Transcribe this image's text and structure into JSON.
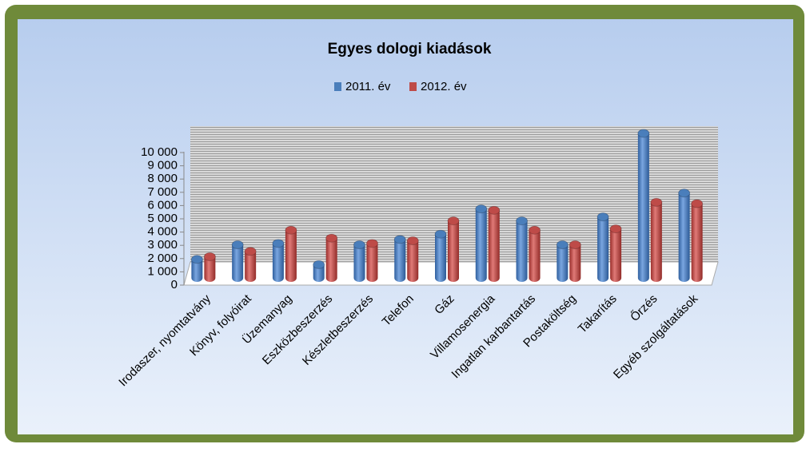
{
  "chart_data": {
    "type": "bar",
    "title": "Egyes dologi kiadások",
    "categories": [
      "Irodaszer, nyomtatvány",
      "Könyv, folyóirat",
      "Üzemanyag",
      "Eszközbeszerzés",
      "Készletbeszerzés",
      "Telefon",
      "Gáz",
      "Villamosenergia",
      "Ingatlan karbantartás",
      "Postaköltség",
      "Takarítás",
      "Őrzés",
      "Egyéb szolgáltatások"
    ],
    "series": [
      {
        "name": "2011. év",
        "color": "#4a7ebb",
        "values": [
          1400,
          2500,
          2600,
          1000,
          2500,
          2900,
          3300,
          5200,
          4300,
          2500,
          4600,
          10900,
          6400
        ]
      },
      {
        "name": "2012. év",
        "color": "#be4b48",
        "values": [
          1600,
          2000,
          3600,
          3000,
          2600,
          2800,
          4300,
          5100,
          3600,
          2500,
          3700,
          5700,
          5600
        ]
      }
    ],
    "ylim": [
      0,
      12000
    ],
    "yticks": [
      0,
      {
        "value": 1000,
        "label": "1 000"
      },
      {
        "value": 2000,
        "label": "2 000"
      },
      {
        "value": 3000,
        "label": "3 000"
      },
      {
        "value": 4000,
        "label": "4 000"
      },
      {
        "value": 5000,
        "label": "5 000"
      },
      {
        "value": 6000,
        "label": "6 000"
      },
      {
        "value": 7000,
        "label": "7 000"
      },
      {
        "value": 8000,
        "label": "8 000"
      },
      {
        "value": 9000,
        "label": "9 000"
      },
      {
        "value": 10000,
        "label": "10 000"
      }
    ],
    "legend": "top"
  }
}
